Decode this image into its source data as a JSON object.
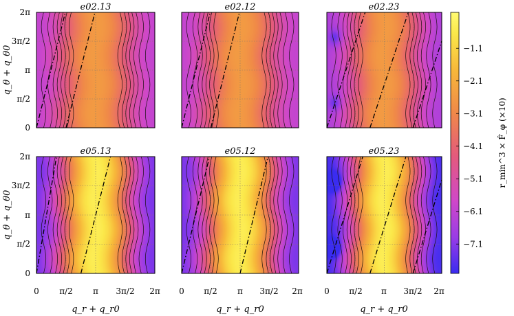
{
  "chart_data": {
    "type": "heatmap",
    "colorbar": {
      "label": "r_min^3 × F̂_φ (×10)",
      "tick_labels": [
        "−1.1",
        "−2.1",
        "−3.1",
        "−4.1",
        "−5.1",
        "−6.1",
        "−7.1"
      ],
      "tick_values": [
        -1.1,
        -2.1,
        -3.1,
        -4.1,
        -5.1,
        -6.1,
        -7.1
      ],
      "range": [
        -8.0,
        0.0
      ],
      "colors": [
        "#3a2cf0",
        "#9a3ce6",
        "#d048c8",
        "#e45a7c",
        "#f08a48",
        "#f7b83a",
        "#fbe84a",
        "#fffb72"
      ]
    },
    "x_label": "q_r + q_r0",
    "y_label": "q_θ + q_θ0",
    "x_tick_labels": [
      "0",
      "π/2",
      "π",
      "3π/2",
      "2π"
    ],
    "y_tick_labels": [
      "0",
      "π/2",
      "π",
      "3π/2",
      "2π"
    ],
    "x_range": [
      0,
      6.2832
    ],
    "y_range": [
      0,
      6.2832
    ],
    "panels": [
      {
        "title": "e02.13",
        "min": -6.0,
        "max": -2.6,
        "spot": 0.0,
        "lines": [
          [
            0.0,
            0.0,
            4.1
          ],
          [
            1.57,
            0.0,
            4.1
          ]
        ]
      },
      {
        "title": "e02.12",
        "min": -6.0,
        "max": -2.6,
        "spot": 0.0,
        "lines": [
          [
            0.0,
            0.0,
            4.1
          ],
          [
            1.57,
            0.0,
            4.1
          ]
        ]
      },
      {
        "title": "e02.23",
        "min": -6.4,
        "max": -2.6,
        "spot": 1.2,
        "lines": [
          [
            0.0,
            0.0,
            3.0
          ],
          [
            2.36,
            0.0,
            3.0
          ],
          [
            4.71,
            0.0,
            3.0
          ]
        ]
      },
      {
        "title": "e05.13",
        "min": -7.2,
        "max": -0.5,
        "spot": 0.0,
        "lines": [
          [
            0.0,
            0.0,
            5.9
          ],
          [
            2.36,
            0.0,
            4.0
          ]
        ]
      },
      {
        "title": "e05.12",
        "min": -7.2,
        "max": -0.5,
        "spot": 0.0,
        "lines": [
          [
            0.0,
            0.0,
            4.2
          ],
          [
            3.14,
            0.0,
            4.2
          ]
        ]
      },
      {
        "title": "e05.23",
        "min": -7.8,
        "max": -0.5,
        "spot": 2.0,
        "lines": [
          [
            0.0,
            0.0,
            3.2
          ],
          [
            2.36,
            0.0,
            3.2
          ],
          [
            4.71,
            0.0,
            3.2
          ]
        ]
      }
    ]
  }
}
